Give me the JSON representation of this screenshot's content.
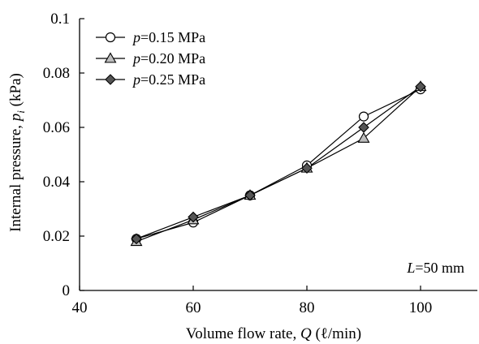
{
  "chart_data": {
    "type": "line",
    "xlabel": {
      "prefix": "Volume flow rate, ",
      "var": "Q",
      "units": "  (ℓ/min)"
    },
    "ylabel": {
      "prefix": "Internal pressure, ",
      "var": "p",
      "sub": "i",
      "units": "  (kPa)"
    },
    "xlim": [
      40,
      110
    ],
    "ylim": [
      0,
      0.1
    ],
    "xticks": [
      40,
      60,
      80,
      100
    ],
    "yticks": [
      0,
      0.02,
      0.04,
      0.06,
      0.08,
      0.1
    ],
    "xtick_labels": [
      "40",
      "60",
      "80",
      "100"
    ],
    "ytick_labels": [
      "0",
      "0.02",
      "0.04",
      "0.06",
      "0.08",
      "0.1"
    ],
    "x": [
      50,
      60,
      70,
      80,
      90,
      100
    ],
    "series": [
      {
        "name": "p=0.15 MPa",
        "var": "p",
        "value": "=0.15  MPa",
        "marker": "circle",
        "fill": "#ffffff",
        "values": [
          0.019,
          0.025,
          0.035,
          0.046,
          0.064,
          0.074
        ]
      },
      {
        "name": "p=0.20 MPa",
        "var": "p",
        "value": "=0.20  MPa",
        "marker": "triangle",
        "fill": "#bdbdbd",
        "values": [
          0.018,
          0.026,
          0.035,
          0.045,
          0.056,
          0.075
        ]
      },
      {
        "name": "p=0.25 MPa",
        "var": "p",
        "value": "=0.25  MPa",
        "marker": "diamond",
        "fill": "#555555",
        "values": [
          0.019,
          0.027,
          0.035,
          0.045,
          0.06,
          0.075
        ]
      }
    ],
    "annotation": {
      "var": "L",
      "value": "=50 mm"
    },
    "grid": false,
    "legend_position": "top-left"
  }
}
